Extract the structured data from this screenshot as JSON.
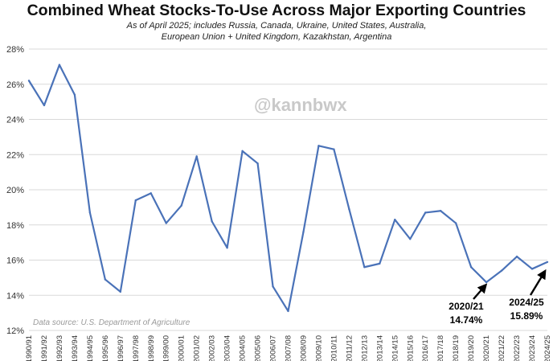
{
  "title": "Combined Wheat Stocks-To-Use Across Major Exporting Countries",
  "subtitle_line1": "As of April 2025; includes Russia, Canada, Ukraine, United States, Australia,",
  "subtitle_line2": "European Union + United Kingdom, Kazakhstan, Argentina",
  "watermark": "@kannbwx",
  "source": "Data source: U.S. Department of Agriculture",
  "annotations": [
    {
      "label": "2020/21",
      "value": "14.74%"
    },
    {
      "label": "2024/25",
      "value": "15.89%"
    }
  ],
  "colors": {
    "line": "#4a72b8",
    "grid": "#d9d9d9",
    "text": "#111111"
  },
  "chart_data": {
    "type": "line",
    "title": "Combined Wheat Stocks-To-Use Across Major Exporting Countries",
    "ylim": [
      12,
      28
    ],
    "y_ticks": [
      12,
      14,
      16,
      18,
      20,
      22,
      24,
      26,
      28
    ],
    "y_tick_labels": [
      "12%",
      "14%",
      "16%",
      "18%",
      "20%",
      "22%",
      "24%",
      "26%",
      "28%"
    ],
    "grid": "horizontal",
    "categories": [
      "1990/91",
      "1991/92",
      "1992/93",
      "1993/94",
      "1994/95",
      "1995/96",
      "1996/97",
      "1997/98",
      "1998/99",
      "1999/00",
      "2000/01",
      "2001/02",
      "2002/03",
      "2003/04",
      "2004/05",
      "2005/06",
      "2006/07",
      "2007/08",
      "2008/09",
      "2009/10",
      "2010/11",
      "2011/12",
      "2012/13",
      "2013/14",
      "2014/15",
      "2015/16",
      "2016/17",
      "2017/18",
      "2018/19",
      "2019/20",
      "2020/21",
      "2021/22",
      "2022/23",
      "2023/24",
      "2024/25"
    ],
    "series": [
      {
        "values": [
          26.2,
          24.8,
          27.1,
          25.4,
          18.7,
          14.9,
          14.2,
          19.4,
          19.8,
          18.1,
          19.1,
          21.9,
          18.2,
          16.7,
          22.2,
          21.5,
          14.5,
          13.1,
          17.6,
          22.5,
          22.3,
          18.9,
          15.6,
          15.8,
          18.3,
          17.2,
          18.7,
          18.8,
          18.1,
          15.6,
          14.74,
          15.4,
          16.2,
          15.5,
          15.89
        ]
      }
    ]
  }
}
